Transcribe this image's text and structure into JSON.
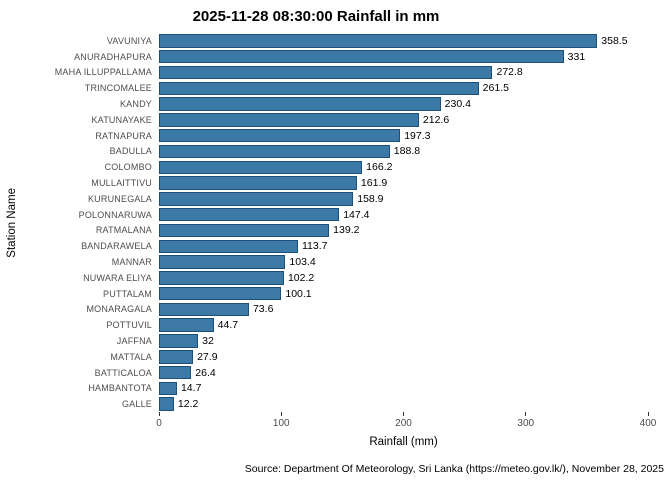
{
  "chart_data": {
    "type": "bar",
    "orientation": "horizontal",
    "title": "2025-11-28 08:30:00 Rainfall in mm",
    "xlabel": "Rainfall (mm)",
    "ylabel": "Station Name",
    "xlim": [
      0,
      400
    ],
    "x_ticks": [
      0,
      100,
      200,
      300,
      400
    ],
    "grid": false,
    "legend": "none",
    "bar_fill": "#3d79a7",
    "bar_border": "#1d4f77",
    "categories": [
      "VAVUNIYA",
      "ANURADHAPURA",
      "MAHA ILLUPPALLAMA",
      "TRINCOMALEE",
      "KANDY",
      "KATUNAYAKE",
      "RATNAPURA",
      "BADULLA",
      "COLOMBO",
      "MULLAITTIVU",
      "KURUNEGALA",
      "POLONNARUWA",
      "RATMALANA",
      "BANDARAWELA",
      "MANNAR",
      "NUWARA ELIYA",
      "PUTTALAM",
      "MONARAGALA",
      "POTTUVIL",
      "JAFFNA",
      "MATTALA",
      "BATTICALOA",
      "HAMBANTOTA",
      "GALLE"
    ],
    "values": [
      358.5,
      331,
      272.8,
      261.5,
      230.4,
      212.6,
      197.3,
      188.8,
      166.2,
      161.9,
      158.9,
      147.4,
      139.2,
      113.7,
      103.4,
      102.2,
      100.1,
      73.6,
      44.7,
      32,
      27.9,
      26.4,
      14.7,
      12.2
    ],
    "value_labels": [
      "358.5",
      "331",
      "272.8",
      "261.5",
      "230.4",
      "212.6",
      "197.3",
      "188.8",
      "166.2",
      "161.9",
      "158.9",
      "147.4",
      "139.2",
      "113.7",
      "103.4",
      "102.2",
      "100.1",
      "73.6",
      "44.7",
      "32",
      "27.9",
      "26.4",
      "14.7",
      "12.2"
    ],
    "caption": "Source: Department Of Meteorology, Sri Lanka (https://meteo.gov.lk/), November 28, 2025"
  }
}
